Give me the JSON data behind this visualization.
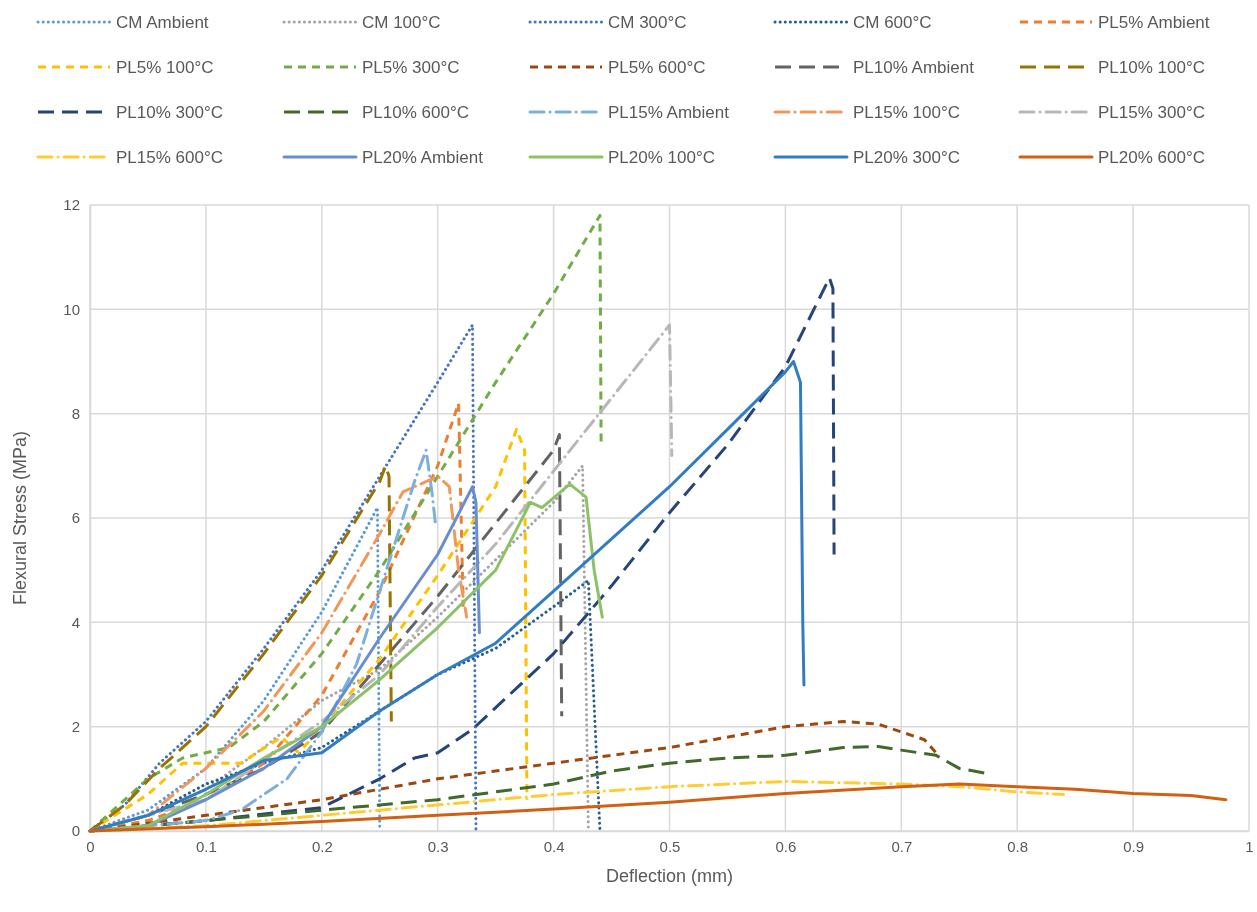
{
  "chart_data": {
    "type": "line",
    "xlabel": "Deflection (mm)",
    "ylabel": "Flexural Stress (MPa)",
    "xlim": [
      0,
      1
    ],
    "ylim": [
      0,
      12
    ],
    "xticks": [
      0,
      0.1,
      0.2,
      0.3,
      0.4,
      0.5,
      0.6,
      0.7,
      0.8,
      0.9,
      1
    ],
    "yticks": [
      0,
      2,
      4,
      6,
      8,
      10,
      12
    ],
    "grid": true,
    "legend": "top",
    "marker": "none",
    "series": [
      {
        "name": "CM Ambient",
        "color": "#5b9bd5",
        "line_style": "dotted",
        "x": [
          0,
          0.05,
          0.1,
          0.15,
          0.2,
          0.248,
          0.25
        ],
        "values": [
          0,
          0.4,
          1.2,
          2.5,
          4.2,
          6.2,
          0
        ]
      },
      {
        "name": "CM 100°C",
        "color": "#a5a5a5",
        "line_style": "dotted",
        "x": [
          0,
          0.05,
          0.1,
          0.15,
          0.2,
          0.25,
          0.3,
          0.35,
          0.4,
          0.425,
          0.43
        ],
        "values": [
          0,
          0.3,
          0.8,
          1.6,
          2.5,
          3.1,
          4.1,
          5.2,
          6.3,
          7.0,
          0
        ]
      },
      {
        "name": "CM 300°C",
        "color": "#4472c4",
        "line_style": "dotted",
        "x": [
          0,
          0.03,
          0.06,
          0.1,
          0.15,
          0.2,
          0.25,
          0.3,
          0.33,
          0.333
        ],
        "values": [
          0,
          0.5,
          1.3,
          2.1,
          3.5,
          5.0,
          6.8,
          8.6,
          9.7,
          0
        ]
      },
      {
        "name": "CM 600°C",
        "color": "#255e91",
        "line_style": "dotted",
        "x": [
          0,
          0.05,
          0.1,
          0.15,
          0.2,
          0.25,
          0.3,
          0.35,
          0.4,
          0.43,
          0.44
        ],
        "values": [
          0,
          0.3,
          0.9,
          1.3,
          1.6,
          2.3,
          3.0,
          3.5,
          4.3,
          4.8,
          0
        ]
      },
      {
        "name": "PL5% Ambient",
        "color": "#ed7d31",
        "line_style": "dashed",
        "x": [
          0,
          0.05,
          0.1,
          0.15,
          0.2,
          0.25,
          0.3,
          0.318,
          0.322
        ],
        "values": [
          0,
          0.2,
          0.6,
          1.3,
          2.6,
          4.6,
          7.0,
          8.2,
          4.3
        ]
      },
      {
        "name": "PL5% 100°C",
        "color": "#ffc000",
        "line_style": "dashed",
        "x": [
          0,
          0.05,
          0.08,
          0.13,
          0.165,
          0.18,
          0.2,
          0.25,
          0.3,
          0.35,
          0.368,
          0.375,
          0.377
        ],
        "values": [
          0,
          0.7,
          1.3,
          1.3,
          1.8,
          1.5,
          2.0,
          3.3,
          4.9,
          6.6,
          7.7,
          7.3,
          0.6
        ]
      },
      {
        "name": "PL5% 300°C",
        "color": "#70ad47",
        "line_style": "dashed",
        "x": [
          0,
          0.05,
          0.08,
          0.12,
          0.15,
          0.2,
          0.25,
          0.3,
          0.35,
          0.4,
          0.44,
          0.441
        ],
        "values": [
          0,
          1.0,
          1.4,
          1.6,
          2.1,
          3.4,
          5.0,
          6.8,
          8.6,
          10.3,
          11.8,
          7.4
        ]
      },
      {
        "name": "PL5% 600°C",
        "color": "#9e480e",
        "line_style": "dashed",
        "x": [
          0,
          0.1,
          0.2,
          0.3,
          0.4,
          0.5,
          0.6,
          0.65,
          0.68,
          0.7,
          0.72,
          0.73
        ],
        "values": [
          0,
          0.3,
          0.6,
          1.0,
          1.3,
          1.6,
          2.0,
          2.1,
          2.05,
          1.9,
          1.75,
          1.5
        ]
      },
      {
        "name": "PL10% Ambient",
        "color": "#636363",
        "line_style": "longdash",
        "x": [
          0,
          0.05,
          0.1,
          0.15,
          0.2,
          0.25,
          0.3,
          0.35,
          0.4,
          0.405,
          0.407
        ],
        "values": [
          0,
          0.3,
          0.7,
          1.2,
          1.9,
          3.2,
          4.5,
          5.9,
          7.3,
          7.6,
          2.2
        ]
      },
      {
        "name": "PL10% 100°C",
        "color": "#997300",
        "line_style": "longdash",
        "x": [
          0,
          0.03,
          0.06,
          0.1,
          0.15,
          0.2,
          0.25,
          0.255,
          0.258,
          0.26
        ],
        "values": [
          0,
          0.5,
          1.2,
          2.0,
          3.4,
          4.9,
          6.7,
          7.0,
          6.8,
          2.1
        ]
      },
      {
        "name": "PL10% 300°C",
        "color": "#264478",
        "line_style": "longdash",
        "x": [
          0,
          0.1,
          0.2,
          0.25,
          0.28,
          0.3,
          0.33,
          0.4,
          0.45,
          0.5,
          0.55,
          0.6,
          0.638,
          0.641,
          0.642
        ],
        "values": [
          0,
          0.2,
          0.45,
          1.0,
          1.4,
          1.5,
          1.95,
          3.4,
          4.7,
          6.1,
          7.4,
          8.9,
          10.6,
          10.4,
          5.3
        ]
      },
      {
        "name": "PL10% 600°C",
        "color": "#43682b",
        "line_style": "longdash",
        "x": [
          0,
          0.1,
          0.2,
          0.3,
          0.4,
          0.45,
          0.5,
          0.55,
          0.6,
          0.65,
          0.68,
          0.7,
          0.73,
          0.75,
          0.775
        ],
        "values": [
          0,
          0.2,
          0.4,
          0.6,
          0.9,
          1.15,
          1.3,
          1.4,
          1.45,
          1.6,
          1.62,
          1.55,
          1.45,
          1.2,
          1.1
        ]
      },
      {
        "name": "PL15% Ambient",
        "color": "#7cafdd",
        "line_style": "dashdot",
        "x": [
          0,
          0.1,
          0.13,
          0.17,
          0.2,
          0.23,
          0.26,
          0.28,
          0.29,
          0.295,
          0.298
        ],
        "values": [
          0,
          0.2,
          0.4,
          1.0,
          1.9,
          3.2,
          5.3,
          6.7,
          7.3,
          6.5,
          5.9
        ]
      },
      {
        "name": "PL15% 100°C",
        "color": "#f1975a",
        "line_style": "dashdot",
        "x": [
          0,
          0.05,
          0.1,
          0.15,
          0.2,
          0.25,
          0.27,
          0.3,
          0.31,
          0.318,
          0.325
        ],
        "values": [
          0,
          0.3,
          1.2,
          2.3,
          3.8,
          5.7,
          6.5,
          6.8,
          6.6,
          5.0,
          4.1
        ]
      },
      {
        "name": "PL15% 300°C",
        "color": "#b7b7b7",
        "line_style": "dashdot",
        "x": [
          0,
          0.1,
          0.2,
          0.25,
          0.3,
          0.35,
          0.4,
          0.45,
          0.5,
          0.502
        ],
        "values": [
          0,
          0.6,
          2.1,
          3.0,
          4.3,
          5.5,
          6.9,
          8.3,
          9.7,
          7.2
        ]
      },
      {
        "name": "PL15% 600°C",
        "color": "#ffcd33",
        "line_style": "dashdot",
        "x": [
          0,
          0.1,
          0.2,
          0.3,
          0.4,
          0.5,
          0.6,
          0.7,
          0.75,
          0.8,
          0.84
        ],
        "values": [
          0,
          0.1,
          0.3,
          0.5,
          0.7,
          0.85,
          0.95,
          0.9,
          0.85,
          0.75,
          0.7
        ]
      },
      {
        "name": "PL20% Ambient",
        "color": "#698ed0",
        "line_style": "solid",
        "x": [
          0,
          0.05,
          0.1,
          0.15,
          0.2,
          0.25,
          0.3,
          0.33,
          0.333,
          0.336
        ],
        "values": [
          0,
          0.1,
          0.6,
          1.2,
          2.0,
          3.7,
          5.3,
          6.6,
          6.3,
          3.8
        ]
      },
      {
        "name": "PL20% 100°C",
        "color": "#8cc168",
        "line_style": "solid",
        "x": [
          0,
          0.05,
          0.1,
          0.15,
          0.2,
          0.25,
          0.3,
          0.35,
          0.38,
          0.39,
          0.414,
          0.428,
          0.435,
          0.442
        ],
        "values": [
          0,
          0.1,
          0.7,
          1.4,
          2.0,
          2.9,
          3.9,
          5.0,
          6.3,
          6.2,
          6.65,
          6.4,
          5.0,
          4.1
        ]
      },
      {
        "name": "PL20% 300°C",
        "color": "#327dc2",
        "line_style": "solid",
        "x": [
          0,
          0.05,
          0.1,
          0.15,
          0.2,
          0.25,
          0.3,
          0.35,
          0.4,
          0.45,
          0.5,
          0.55,
          0.6,
          0.607,
          0.613,
          0.615,
          0.616
        ],
        "values": [
          0,
          0.3,
          0.8,
          1.35,
          1.5,
          2.3,
          3.0,
          3.6,
          4.6,
          5.6,
          6.6,
          7.7,
          8.8,
          9.0,
          8.6,
          4.0,
          2.8
        ]
      },
      {
        "name": "PL20% 600°C",
        "color": "#d26012",
        "line_style": "solid",
        "x": [
          0,
          0.1,
          0.2,
          0.3,
          0.4,
          0.5,
          0.6,
          0.7,
          0.75,
          0.8,
          0.85,
          0.9,
          0.95,
          0.98
        ],
        "values": [
          0,
          0.08,
          0.18,
          0.3,
          0.42,
          0.55,
          0.72,
          0.85,
          0.9,
          0.85,
          0.8,
          0.72,
          0.68,
          0.6
        ]
      }
    ]
  }
}
